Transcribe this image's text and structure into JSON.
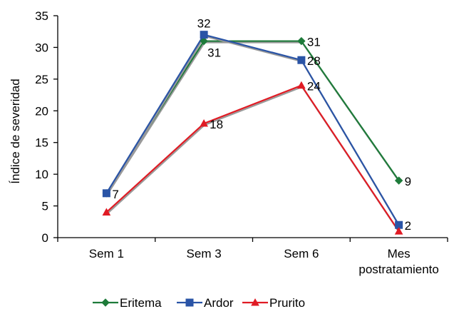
{
  "chart_data": {
    "type": "line",
    "title": "",
    "ylabel": "Índice de severidad",
    "xlabel": "",
    "ylim": [
      0,
      35
    ],
    "yticks": [
      0,
      5,
      10,
      15,
      20,
      25,
      30,
      35
    ],
    "categories": [
      "Sem 1",
      "Sem 3",
      "Sem 6",
      "Mes postratamiento"
    ],
    "category_lines": [
      [
        "Sem 1"
      ],
      [
        "Sem 3"
      ],
      [
        "Sem 6"
      ],
      [
        "Mes",
        "postratamiento"
      ]
    ],
    "grid": false,
    "legend_position": "bottom",
    "series": [
      {
        "name": "Eritema",
        "values": [
          7,
          31,
          31,
          9
        ],
        "color": "#1e7b3a",
        "marker": "diamond",
        "labels": [
          "",
          "",
          "31",
          "9"
        ]
      },
      {
        "name": "Ardor",
        "values": [
          7,
          32,
          28,
          2
        ],
        "color": "#2a54a6",
        "marker": "square",
        "labels": [
          "7",
          "32",
          "28",
          "2"
        ]
      },
      {
        "name": "Prurito",
        "values": [
          4,
          18,
          24,
          1
        ],
        "color": "#e01b24",
        "marker": "triangle",
        "labels": [
          "",
          "18",
          "24",
          ""
        ]
      }
    ],
    "extra_labels": [
      {
        "series": "Eritema",
        "index": 1,
        "text": "31"
      }
    ]
  }
}
